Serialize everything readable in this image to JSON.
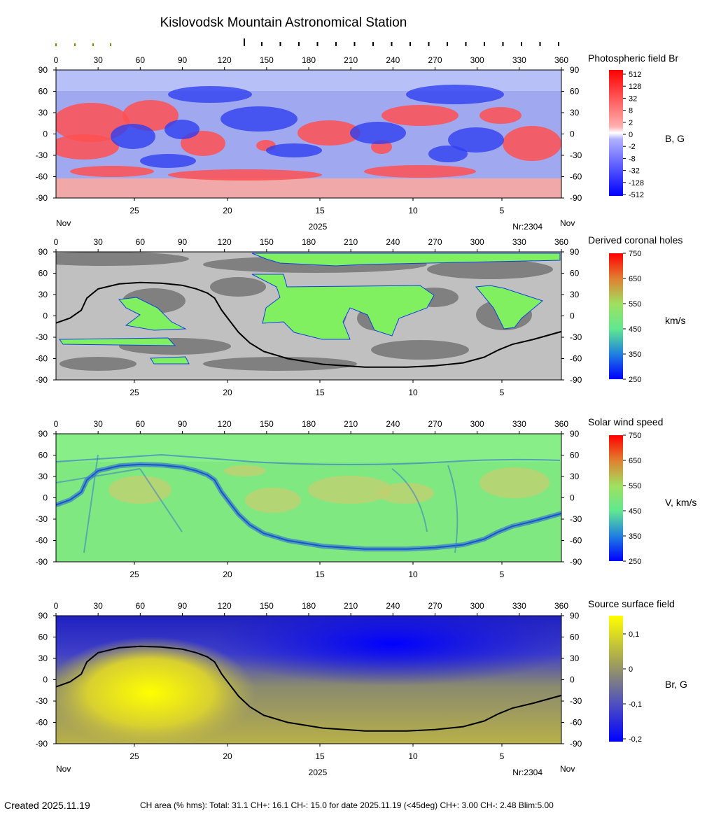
{
  "title": "Kislovodsk Mountain Astronomical Station",
  "footer": {
    "created": "Created  2025.11.19",
    "ch_area": "CH area (% hms): Total: 31.1 CH+: 16.1   CH-: 15.0 for date 2025.11.19 (<45deg) CH+: 3.00    CH-: 2.48 Blim:5.00"
  },
  "colors": {
    "positive_field": "#ff0000",
    "negative_field": "#0000ff",
    "ch_green": "#80f060",
    "quiet_dark_gray": "#808080",
    "quiet_light_gray": "#c0c0c0",
    "wind_base": "#80ee80",
    "ss_positive": "#ffff00",
    "ss_negative": "#0000ff",
    "neutral_line": "#000000"
  },
  "chart_data": [
    {
      "type": "heatmap",
      "name": "Photospheric field Br",
      "colorbar_label": "B, G",
      "colorbar_ticks": [
        "512",
        "128",
        "32",
        "8",
        "2",
        "0",
        "-2",
        "-8",
        "-32",
        "-128",
        "-512"
      ],
      "x_ticks": [
        "0",
        "30",
        "60",
        "90",
        "120",
        "150",
        "180",
        "210",
        "240",
        "270",
        "300",
        "330",
        "360"
      ],
      "y_ticks": [
        "90",
        "60",
        "30",
        "0",
        "-30",
        "-60",
        "-90"
      ],
      "xlim": [
        0,
        360
      ],
      "ylim": [
        -90,
        90
      ],
      "date_ticks": [
        "25",
        "20",
        "15",
        "10",
        "5"
      ],
      "left_month": "Nov",
      "right_month": "Nov",
      "year": "2025",
      "rotation": "Nr:2304"
    },
    {
      "type": "heatmap",
      "name": "Derived coronal holes",
      "colorbar_label": "km/s",
      "colorbar_ticks": [
        "750",
        "650",
        "550",
        "450",
        "350",
        "250"
      ],
      "x_ticks": [
        "0",
        "30",
        "60",
        "90",
        "120",
        "150",
        "180",
        "210",
        "240",
        "270",
        "300",
        "330",
        "360"
      ],
      "y_ticks": [
        "90",
        "60",
        "30",
        "0",
        "-30",
        "-60",
        "-90"
      ],
      "xlim": [
        0,
        360
      ],
      "ylim": [
        -90,
        90
      ],
      "date_ticks": [
        "25",
        "20",
        "15",
        "10",
        "5"
      ],
      "neutral_line": [
        [
          0,
          -10
        ],
        [
          10,
          -3
        ],
        [
          18,
          8
        ],
        [
          22,
          25
        ],
        [
          30,
          38
        ],
        [
          45,
          45
        ],
        [
          60,
          47
        ],
        [
          75,
          46
        ],
        [
          90,
          43
        ],
        [
          100,
          38
        ],
        [
          108,
          32
        ],
        [
          113,
          25
        ],
        [
          118,
          8
        ],
        [
          123,
          -5
        ],
        [
          130,
          -23
        ],
        [
          138,
          -38
        ],
        [
          148,
          -50
        ],
        [
          165,
          -60
        ],
        [
          190,
          -68
        ],
        [
          220,
          -72
        ],
        [
          250,
          -72
        ],
        [
          270,
          -70
        ],
        [
          290,
          -66
        ],
        [
          305,
          -58
        ],
        [
          315,
          -48
        ],
        [
          325,
          -40
        ],
        [
          340,
          -33
        ],
        [
          360,
          -22
        ]
      ]
    },
    {
      "type": "heatmap",
      "name": "Solar wind speed",
      "colorbar_label": "V, km/s",
      "colorbar_ticks": [
        "750",
        "650",
        "550",
        "450",
        "350",
        "250"
      ],
      "x_ticks": [
        "0",
        "30",
        "60",
        "90",
        "120",
        "150",
        "180",
        "210",
        "240",
        "270",
        "300",
        "330",
        "360"
      ],
      "y_ticks": [
        "90",
        "60",
        "30",
        "0",
        "-30",
        "-60",
        "-90"
      ],
      "xlim": [
        0,
        360
      ],
      "ylim": [
        -90,
        90
      ],
      "date_ticks": [
        "25",
        "20",
        "15",
        "10",
        "5"
      ]
    },
    {
      "type": "heatmap",
      "name": "Source surface field",
      "colorbar_label": "Br, G",
      "colorbar_ticks": [
        "0,1",
        "0",
        "-0,1",
        "-0,2"
      ],
      "x_ticks": [
        "0",
        "30",
        "60",
        "90",
        "120",
        "150",
        "180",
        "210",
        "240",
        "270",
        "300",
        "330",
        "360"
      ],
      "y_ticks": [
        "90",
        "60",
        "30",
        "0",
        "-30",
        "-60",
        "-90"
      ],
      "xlim": [
        0,
        360
      ],
      "ylim": [
        -90,
        90
      ],
      "date_ticks": [
        "25",
        "20",
        "15",
        "10",
        "5"
      ],
      "left_month": "Nov",
      "right_month": "Nov",
      "year": "2025",
      "rotation": "Nr:2304",
      "neutral_line": [
        [
          0,
          -10
        ],
        [
          10,
          -3
        ],
        [
          18,
          8
        ],
        [
          22,
          25
        ],
        [
          30,
          38
        ],
        [
          45,
          45
        ],
        [
          60,
          47
        ],
        [
          75,
          46
        ],
        [
          90,
          43
        ],
        [
          100,
          38
        ],
        [
          108,
          32
        ],
        [
          113,
          25
        ],
        [
          118,
          8
        ],
        [
          123,
          -5
        ],
        [
          130,
          -23
        ],
        [
          138,
          -38
        ],
        [
          148,
          -50
        ],
        [
          165,
          -60
        ],
        [
          190,
          -68
        ],
        [
          220,
          -72
        ],
        [
          250,
          -72
        ],
        [
          270,
          -70
        ],
        [
          290,
          -66
        ],
        [
          305,
          -58
        ],
        [
          315,
          -48
        ],
        [
          325,
          -40
        ],
        [
          340,
          -33
        ],
        [
          360,
          -22
        ]
      ]
    }
  ]
}
